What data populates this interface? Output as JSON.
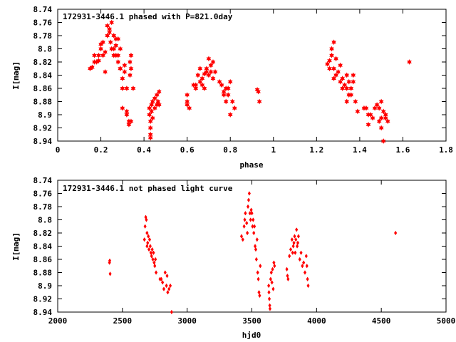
{
  "chart_data": [
    {
      "type": "scatter",
      "title": "172931-3446.1 phased with P=821.0day",
      "xlabel": "phase",
      "ylabel": "I[mag]",
      "xlim": [
        0,
        1.8
      ],
      "ylim": [
        8.94,
        8.74
      ],
      "y_inverted": true,
      "grid": false,
      "color": "#ff0000",
      "marker": "star",
      "xticks": [
        "0",
        "0.2",
        "0.4",
        "0.6",
        "0.8",
        "1",
        "1.2",
        "1.4",
        "1.6",
        "1.8"
      ],
      "yticks": [
        "8.74",
        "8.76",
        "8.78",
        "8.8",
        "8.82",
        "8.84",
        "8.86",
        "8.88",
        "8.9",
        "8.92",
        "8.94"
      ],
      "points": [
        [
          0.15,
          8.83
        ],
        [
          0.16,
          8.828
        ],
        [
          0.17,
          8.82
        ],
        [
          0.17,
          8.81
        ],
        [
          0.18,
          8.82
        ],
        [
          0.19,
          8.81
        ],
        [
          0.19,
          8.818
        ],
        [
          0.2,
          8.8
        ],
        [
          0.2,
          8.793
        ],
        [
          0.21,
          8.79
        ],
        [
          0.21,
          8.81
        ],
        [
          0.22,
          8.835
        ],
        [
          0.22,
          8.805
        ],
        [
          0.23,
          8.78
        ],
        [
          0.23,
          8.765
        ],
        [
          0.24,
          8.77
        ],
        [
          0.24,
          8.775
        ],
        [
          0.245,
          8.79
        ],
        [
          0.25,
          8.76
        ],
        [
          0.25,
          8.8
        ],
        [
          0.26,
          8.8
        ],
        [
          0.26,
          8.78
        ],
        [
          0.26,
          8.81
        ],
        [
          0.27,
          8.795
        ],
        [
          0.27,
          8.785
        ],
        [
          0.27,
          8.81
        ],
        [
          0.28,
          8.785
        ],
        [
          0.28,
          8.81
        ],
        [
          0.28,
          8.82
        ],
        [
          0.29,
          8.83
        ],
        [
          0.29,
          8.8
        ],
        [
          0.29,
          8.83
        ],
        [
          0.3,
          8.86
        ],
        [
          0.3,
          8.845
        ],
        [
          0.3,
          8.89
        ],
        [
          0.31,
          8.825
        ],
        [
          0.31,
          8.835
        ],
        [
          0.32,
          8.86
        ],
        [
          0.32,
          8.895
        ],
        [
          0.32,
          8.9
        ],
        [
          0.33,
          8.91
        ],
        [
          0.33,
          8.915
        ],
        [
          0.335,
          8.82
        ],
        [
          0.335,
          8.84
        ],
        [
          0.34,
          8.81
        ],
        [
          0.34,
          8.91
        ],
        [
          0.35,
          8.86
        ],
        [
          0.34,
          8.83
        ],
        [
          0.425,
          8.89
        ],
        [
          0.425,
          8.9
        ],
        [
          0.43,
          8.91
        ],
        [
          0.43,
          8.92
        ],
        [
          0.43,
          8.93
        ],
        [
          0.43,
          8.935
        ],
        [
          0.435,
          8.885
        ],
        [
          0.435,
          8.895
        ],
        [
          0.44,
          8.88
        ],
        [
          0.44,
          8.905
        ],
        [
          0.45,
          8.89
        ],
        [
          0.45,
          8.875
        ],
        [
          0.46,
          8.87
        ],
        [
          0.46,
          8.885
        ],
        [
          0.465,
          8.88
        ],
        [
          0.47,
          8.865
        ],
        [
          0.47,
          8.885
        ],
        [
          0.6,
          8.88
        ],
        [
          0.6,
          8.885
        ],
        [
          0.61,
          8.89
        ],
        [
          0.6,
          8.87
        ],
        [
          0.63,
          8.855
        ],
        [
          0.64,
          8.86
        ],
        [
          0.64,
          8.855
        ],
        [
          0.65,
          8.84
        ],
        [
          0.66,
          8.83
        ],
        [
          0.66,
          8.85
        ],
        [
          0.67,
          8.855
        ],
        [
          0.67,
          8.845
        ],
        [
          0.68,
          8.838
        ],
        [
          0.68,
          8.86
        ],
        [
          0.69,
          8.83
        ],
        [
          0.69,
          8.835
        ],
        [
          0.7,
          8.815
        ],
        [
          0.7,
          8.84
        ],
        [
          0.71,
          8.835
        ],
        [
          0.71,
          8.825
        ],
        [
          0.72,
          8.82
        ],
        [
          0.72,
          8.845
        ],
        [
          0.73,
          8.835
        ],
        [
          0.75,
          8.85
        ],
        [
          0.76,
          8.855
        ],
        [
          0.77,
          8.87
        ],
        [
          0.77,
          8.865
        ],
        [
          0.78,
          8.86
        ],
        [
          0.78,
          8.88
        ],
        [
          0.79,
          8.86
        ],
        [
          0.79,
          8.87
        ],
        [
          0.8,
          8.85
        ],
        [
          0.8,
          8.9
        ],
        [
          0.81,
          8.88
        ],
        [
          0.82,
          8.89
        ],
        [
          0.925,
          8.862
        ],
        [
          0.93,
          8.865
        ],
        [
          0.935,
          8.88
        ],
        [
          1.25,
          8.823
        ],
        [
          1.26,
          8.83
        ],
        [
          1.26,
          8.818
        ],
        [
          1.27,
          8.81
        ],
        [
          1.27,
          8.8
        ],
        [
          1.28,
          8.79
        ],
        [
          1.28,
          8.83
        ],
        [
          1.28,
          8.845
        ],
        [
          1.29,
          8.815
        ],
        [
          1.29,
          8.84
        ],
        [
          1.3,
          8.835
        ],
        [
          1.31,
          8.825
        ],
        [
          1.31,
          8.85
        ],
        [
          1.32,
          8.845
        ],
        [
          1.32,
          8.86
        ],
        [
          1.33,
          8.855
        ],
        [
          1.34,
          8.84
        ],
        [
          1.34,
          8.86
        ],
        [
          1.34,
          8.88
        ],
        [
          1.35,
          8.87
        ],
        [
          1.35,
          8.85
        ],
        [
          1.36,
          8.86
        ],
        [
          1.36,
          8.87
        ],
        [
          1.37,
          8.85
        ],
        [
          1.37,
          8.84
        ],
        [
          1.38,
          8.88
        ],
        [
          1.39,
          8.895
        ],
        [
          1.42,
          8.89
        ],
        [
          1.43,
          8.89
        ],
        [
          1.44,
          8.9
        ],
        [
          1.44,
          8.915
        ],
        [
          1.45,
          8.9
        ],
        [
          1.46,
          8.905
        ],
        [
          1.47,
          8.89
        ],
        [
          1.48,
          8.885
        ],
        [
          1.49,
          8.89
        ],
        [
          1.49,
          8.91
        ],
        [
          1.5,
          8.88
        ],
        [
          1.5,
          8.905
        ],
        [
          1.5,
          8.92
        ],
        [
          1.51,
          8.895
        ],
        [
          1.51,
          8.94
        ],
        [
          1.52,
          8.9
        ],
        [
          1.52,
          8.905
        ],
        [
          1.53,
          8.91
        ],
        [
          1.63,
          8.82
        ]
      ]
    },
    {
      "type": "scatter",
      "title": "172931-3446.1 not phased light curve",
      "xlabel": "hjd0",
      "ylabel": "I[mag]",
      "xlim": [
        2000,
        5000
      ],
      "ylim": [
        8.94,
        8.74
      ],
      "y_inverted": true,
      "grid": false,
      "color": "#ff0000",
      "marker": "diamond",
      "xticks": [
        "2000",
        "2500",
        "3000",
        "3500",
        "4000",
        "4500",
        "5000"
      ],
      "yticks": [
        "8.74",
        "8.76",
        "8.78",
        "8.8",
        "8.82",
        "8.84",
        "8.86",
        "8.88",
        "8.9",
        "8.92",
        "8.94"
      ],
      "points": [
        [
          2400,
          8.865
        ],
        [
          2402,
          8.862
        ],
        [
          2405,
          8.882
        ],
        [
          2670,
          8.83
        ],
        [
          2675,
          8.81
        ],
        [
          2680,
          8.796
        ],
        [
          2685,
          8.8
        ],
        [
          2690,
          8.82
        ],
        [
          2690,
          8.84
        ],
        [
          2695,
          8.835
        ],
        [
          2700,
          8.825
        ],
        [
          2705,
          8.845
        ],
        [
          2710,
          8.83
        ],
        [
          2715,
          8.84
        ],
        [
          2720,
          8.85
        ],
        [
          2725,
          8.855
        ],
        [
          2730,
          8.845
        ],
        [
          2735,
          8.86
        ],
        [
          2740,
          8.85
        ],
        [
          2745,
          8.865
        ],
        [
          2750,
          8.87
        ],
        [
          2755,
          8.86
        ],
        [
          2760,
          8.88
        ],
        [
          2790,
          8.89
        ],
        [
          2800,
          8.89
        ],
        [
          2810,
          8.895
        ],
        [
          2820,
          8.905
        ],
        [
          2830,
          8.88
        ],
        [
          2840,
          8.9
        ],
        [
          2845,
          8.885
        ],
        [
          2850,
          8.91
        ],
        [
          2860,
          8.905
        ],
        [
          2870,
          8.9
        ],
        [
          2880,
          8.94
        ],
        [
          3420,
          8.825
        ],
        [
          3430,
          8.83
        ],
        [
          3440,
          8.81
        ],
        [
          3445,
          8.8
        ],
        [
          3450,
          8.79
        ],
        [
          3460,
          8.805
        ],
        [
          3465,
          8.82
        ],
        [
          3470,
          8.78
        ],
        [
          3475,
          8.77
        ],
        [
          3480,
          8.76
        ],
        [
          3485,
          8.79
        ],
        [
          3490,
          8.8
        ],
        [
          3495,
          8.785
        ],
        [
          3500,
          8.79
        ],
        [
          3505,
          8.81
        ],
        [
          3510,
          8.8
        ],
        [
          3515,
          8.82
        ],
        [
          3520,
          8.81
        ],
        [
          3525,
          8.84
        ],
        [
          3530,
          8.845
        ],
        [
          3535,
          8.86
        ],
        [
          3540,
          8.83
        ],
        [
          3545,
          8.88
        ],
        [
          3550,
          8.89
        ],
        [
          3555,
          8.91
        ],
        [
          3560,
          8.915
        ],
        [
          3565,
          8.87
        ],
        [
          3630,
          8.9
        ],
        [
          3632,
          8.91
        ],
        [
          3635,
          8.92
        ],
        [
          3638,
          8.93
        ],
        [
          3640,
          8.935
        ],
        [
          3645,
          8.89
        ],
        [
          3650,
          8.88
        ],
        [
          3655,
          8.895
        ],
        [
          3660,
          8.875
        ],
        [
          3665,
          8.905
        ],
        [
          3670,
          8.865
        ],
        [
          3675,
          8.87
        ],
        [
          3770,
          8.875
        ],
        [
          3775,
          8.885
        ],
        [
          3780,
          8.89
        ],
        [
          3790,
          8.855
        ],
        [
          3800,
          8.845
        ],
        [
          3810,
          8.83
        ],
        [
          3815,
          8.85
        ],
        [
          3820,
          8.84
        ],
        [
          3825,
          8.835
        ],
        [
          3830,
          8.825
        ],
        [
          3835,
          8.85
        ],
        [
          3840,
          8.83
        ],
        [
          3845,
          8.815
        ],
        [
          3850,
          8.84
        ],
        [
          3855,
          8.835
        ],
        [
          3860,
          8.825
        ],
        [
          3870,
          8.86
        ],
        [
          3880,
          8.85
        ],
        [
          3890,
          8.87
        ],
        [
          3900,
          8.865
        ],
        [
          3910,
          8.88
        ],
        [
          3920,
          8.855
        ],
        [
          3925,
          8.87
        ],
        [
          3930,
          8.89
        ],
        [
          3935,
          8.9
        ],
        [
          4610,
          8.82
        ]
      ]
    }
  ]
}
